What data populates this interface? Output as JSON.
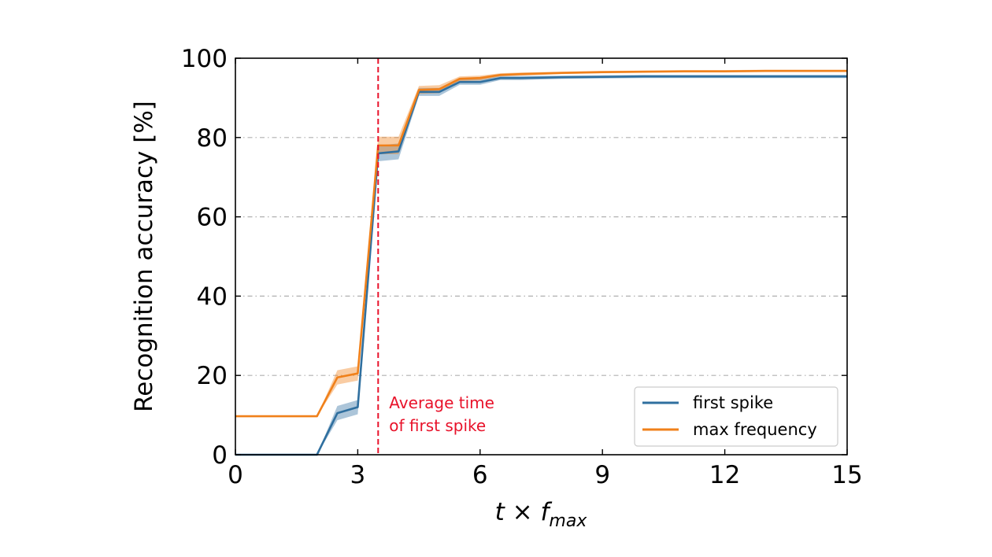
{
  "chart_data": {
    "type": "line",
    "xlabel": {
      "main": "t",
      "op": " × ",
      "var": "f",
      "sub": "max"
    },
    "ylabel": "Recognition accuracy [%]",
    "xlim": [
      0,
      15
    ],
    "ylim": [
      0,
      100
    ],
    "xticks": [
      0,
      3,
      6,
      9,
      12,
      15
    ],
    "yticks": [
      0,
      20,
      40,
      60,
      80,
      100
    ],
    "grid": "horizontal dashed",
    "legend_position": "lower-right",
    "series": [
      {
        "name": "first spike",
        "color": "#2f6f9f",
        "x": [
          0,
          2,
          2.5,
          3,
          3.5,
          4,
          4.5,
          5,
          5.5,
          6,
          6.5,
          7,
          8,
          9,
          10,
          11,
          12,
          13,
          14,
          15
        ],
        "y": [
          0,
          0,
          10.5,
          12,
          76,
          76.5,
          91.5,
          91.5,
          94,
          94,
          95,
          95,
          95.2,
          95.3,
          95.4,
          95.4,
          95.4,
          95.4,
          95.4,
          95.4
        ],
        "band": [
          0,
          0,
          1.8,
          1.8,
          2,
          2,
          1,
          1,
          0.7,
          0.7,
          0.5,
          0.5,
          0.4,
          0.4,
          0.4,
          0.4,
          0.4,
          0.4,
          0.4,
          0.4
        ]
      },
      {
        "name": "max frequency",
        "color": "#f0801a",
        "x": [
          0,
          2,
          2.5,
          3,
          3.5,
          4,
          4.5,
          5,
          5.5,
          6,
          6.5,
          7,
          8,
          9,
          10,
          11,
          12,
          13,
          14,
          15
        ],
        "y": [
          9.7,
          9.7,
          19.5,
          20.5,
          78,
          78,
          92,
          92.2,
          94.8,
          95,
          95.8,
          96,
          96.3,
          96.5,
          96.6,
          96.7,
          96.7,
          96.8,
          96.8,
          96.8
        ],
        "band": [
          0,
          0,
          1.8,
          1.8,
          2.2,
          2.2,
          1,
          1,
          0.6,
          0.6,
          0.4,
          0.4,
          0.3,
          0.3,
          0.3,
          0.3,
          0.3,
          0.3,
          0.3,
          0.3
        ]
      }
    ],
    "annotations": [
      {
        "type": "vline",
        "x": 3.5,
        "color": "#e8122a",
        "style": "dashed",
        "text": [
          "Average time",
          "of first spike"
        ]
      }
    ]
  }
}
